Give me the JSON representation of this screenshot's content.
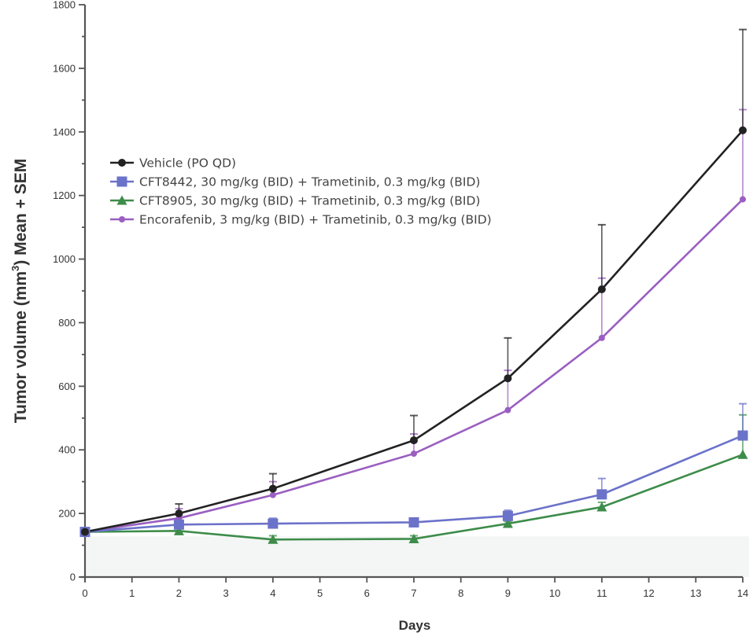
{
  "chart_data": {
    "type": "line",
    "title": "",
    "xlabel": "Days",
    "ylabel_main": "Tumor volume (mm",
    "ylabel_sup": "3",
    "ylabel_end": ") Mean + SEM",
    "xlim": [
      0,
      14
    ],
    "ylim": [
      0,
      1800
    ],
    "x_ticks": [
      "0",
      "1",
      "2",
      "3",
      "4",
      "5",
      "6",
      "7",
      "8",
      "9",
      "10",
      "11",
      "12",
      "13",
      "14"
    ],
    "y_ticks": [
      "0",
      "200",
      "400",
      "600",
      "800",
      "1000",
      "1200",
      "1400",
      "1600",
      "1800"
    ],
    "y_major_step": 200,
    "y_minor_step": 100,
    "grid": false,
    "legend_position": "upper-left",
    "shaded_band": {
      "from": 0,
      "to": 128,
      "color": "#f3f6f4"
    },
    "series": [
      {
        "name": "Vehicle (PO QD)",
        "color": "#222222",
        "marker": "circle",
        "x": [
          0,
          2,
          4,
          7,
          9,
          11,
          14
        ],
        "y": [
          142,
          200,
          278,
          430,
          625,
          905,
          1405
        ],
        "error_upper": [
          150,
          230,
          325,
          508,
          752,
          1108,
          1722
        ]
      },
      {
        "name": "CFT8442, 30 mg/kg (BID) + Trametinib, 0.3 mg/kg (BID)",
        "color": "#6b72c9",
        "marker": "square",
        "x": [
          0,
          2,
          4,
          7,
          9,
          11,
          14
        ],
        "y": [
          142,
          165,
          168,
          172,
          192,
          260,
          445
        ],
        "error_upper": [
          150,
          195,
          185,
          185,
          210,
          310,
          545
        ]
      },
      {
        "name": "CFT8905, 30 mg/kg (BID) + Trametinib, 0.3 mg/kg (BID)",
        "color": "#3d8c4a",
        "marker": "triangle",
        "x": [
          0,
          2,
          4,
          7,
          9,
          11,
          14
        ],
        "y": [
          142,
          145,
          118,
          120,
          168,
          220,
          385
        ],
        "error_upper": [
          150,
          155,
          130,
          130,
          175,
          235,
          510
        ]
      },
      {
        "name": "Encorafenib, 3 mg/kg (BID) + Trametinib, 0.3 mg/kg (BID)",
        "color": "#9a5fc0",
        "marker": "diamond",
        "x": [
          0,
          2,
          4,
          7,
          9,
          11,
          14
        ],
        "y": [
          142,
          185,
          258,
          388,
          525,
          752,
          1188
        ],
        "error_upper": [
          150,
          215,
          300,
          450,
          650,
          940,
          1470
        ]
      }
    ]
  }
}
